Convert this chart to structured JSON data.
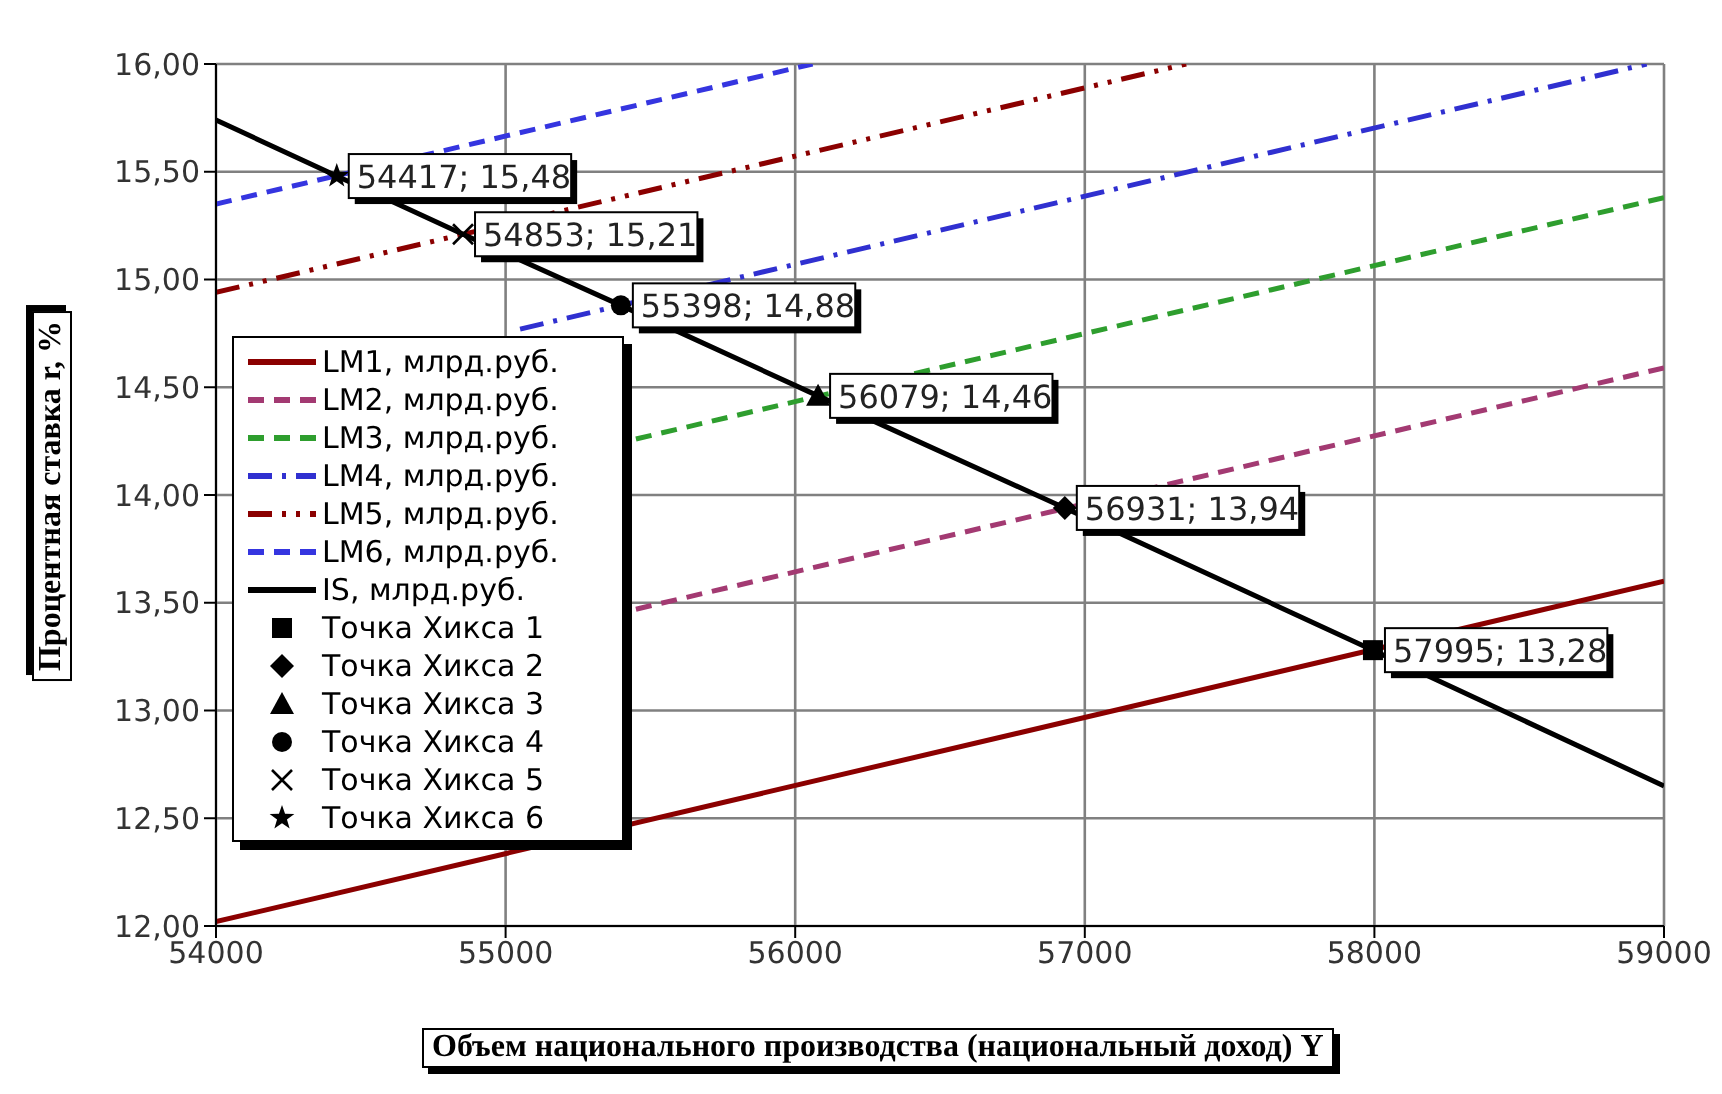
{
  "chart_data": {
    "type": "line",
    "xlabel": "Объем  национального  производства (национальный доход)  Y",
    "ylabel": "Процентная  ставка  r, %",
    "xlim": [
      54000,
      59000
    ],
    "xticks": [
      54000,
      55000,
      56000,
      57000,
      58000,
      59000
    ],
    "ylim": [
      12,
      16
    ],
    "yticks": [
      {
        "value": 12,
        "label": "12,00"
      },
      {
        "value": 12.5,
        "label": "12,50"
      },
      {
        "value": 13,
        "label": "13,00"
      },
      {
        "value": 13.5,
        "label": "13,50"
      },
      {
        "value": 14,
        "label": "14,00"
      },
      {
        "value": 14.5,
        "label": "14,50"
      },
      {
        "value": 15,
        "label": "15,00"
      },
      {
        "value": 15.5,
        "label": "15,50"
      },
      {
        "value": 16,
        "label": "16,00"
      }
    ],
    "grid": true,
    "legend": "left",
    "marker": "none",
    "series": [
      {
        "name": "LM1, млрд.руб.",
        "color": "#8b0000",
        "line_style": "solid",
        "x": [
          54000,
          59000
        ],
        "values": [
          12.02,
          13.6
        ]
      },
      {
        "name": "LM2, млрд.руб.",
        "color": "#a33a72",
        "line_style": "dashed",
        "x": [
          55450,
          59000
        ],
        "values": [
          13.47,
          14.59
        ]
      },
      {
        "name": "LM3, млрд.руб.",
        "color": "#2e9e2e",
        "line_style": "dashed",
        "x": [
          55450,
          59000
        ],
        "values": [
          14.26,
          15.38
        ]
      },
      {
        "name": "LM4, млрд.руб.",
        "color": "#3030d0",
        "line_style": "dashdot",
        "x": [
          55050,
          58940
        ],
        "values": [
          14.77,
          16.0
        ]
      },
      {
        "name": "LM5, млрд.руб.",
        "color": "#8b0000",
        "line_style": "dashdotdot",
        "x": [
          54000,
          57350
        ],
        "values": [
          14.94,
          16.0
        ]
      },
      {
        "name": "LM6, млрд.руб.",
        "color": "#3535e0",
        "line_style": "dashed",
        "x": [
          54000,
          56060
        ],
        "values": [
          15.35,
          16.0
        ]
      },
      {
        "name": "IS, млрд.руб.",
        "color": "#000000",
        "line_style": "solid",
        "x": [
          54000,
          54417,
          54853,
          55398,
          56079,
          56931,
          57995,
          59000
        ],
        "values": [
          15.74,
          15.48,
          15.21,
          14.88,
          14.46,
          13.94,
          13.28,
          12.65
        ]
      },
      {
        "name": "Точка Хикса 1",
        "type": "scatter",
        "color": "#000000",
        "marker": "square",
        "x": [
          57995
        ],
        "values": [
          13.28
        ],
        "value_labels": [
          "57995; 13,28"
        ]
      },
      {
        "name": "Точка Хикса 2",
        "type": "scatter",
        "color": "#000000",
        "marker": "diamond",
        "x": [
          56931
        ],
        "values": [
          13.94
        ],
        "value_labels": [
          "56931; 13,94"
        ]
      },
      {
        "name": "Точка Хикса 3",
        "type": "scatter",
        "color": "#000000",
        "marker": "triangle",
        "x": [
          56079
        ],
        "values": [
          14.46
        ],
        "value_labels": [
          "56079; 14,46"
        ]
      },
      {
        "name": "Точка Хикса 4",
        "type": "scatter",
        "color": "#000000",
        "marker": "circle",
        "x": [
          55398
        ],
        "values": [
          14.88
        ],
        "value_labels": [
          "55398; 14,88"
        ]
      },
      {
        "name": "Точка Хикса 5",
        "type": "scatter",
        "color": "#000000",
        "marker": "cross",
        "x": [
          54853
        ],
        "values": [
          15.21
        ],
        "value_labels": [
          "54853; 15,21"
        ]
      },
      {
        "name": "Точка Хикса 6",
        "type": "scatter",
        "color": "#000000",
        "marker": "star",
        "x": [
          54417
        ],
        "values": [
          15.48
        ],
        "value_labels": [
          "54417; 15,48"
        ]
      }
    ]
  }
}
